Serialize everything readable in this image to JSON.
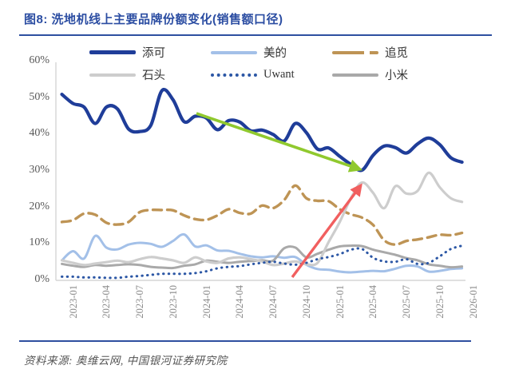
{
  "header": {
    "title": "图8: 洗地机线上主要品牌份额变化(销售额口径)"
  },
  "source": {
    "text": "资料来源: 奥维云网, 中国银河证券研究院"
  },
  "colors": {
    "title_blue": "#2b4da2",
    "rule_blue": "#2e4fa0",
    "axis_gray": "#d6d6d6",
    "green_arrow": "#90c92e",
    "red_arrow": "#f15f5f"
  },
  "chart_data": {
    "type": "line",
    "title": "洗地机线上主要品牌份额变化(销售额口径)",
    "x_start": "2023-01",
    "x_interval": "monthly",
    "x_tick_labels": [
      "2023-01",
      "2023-04",
      "2023-07",
      "2023-10",
      "2024-01",
      "2024-04",
      "2024-07",
      "2024-10",
      "2025-01",
      "2025-04",
      "2025-07",
      "2025-10",
      "2026-01"
    ],
    "y_tick_labels": [
      "0%",
      "10%",
      "20%",
      "30%",
      "40%",
      "50%",
      "60%"
    ],
    "y_tick_values": [
      0,
      10,
      20,
      30,
      40,
      50,
      60
    ],
    "ylim": [
      0,
      60
    ],
    "grid": false,
    "legend_position": "top",
    "series": [
      {
        "name": "添可",
        "color": "#1f3d99",
        "style": "solid",
        "width": 4.2,
        "values": [
          51,
          48.5,
          47.5,
          43,
          47.5,
          47,
          41.5,
          40.8,
          42.5,
          52,
          49.5,
          43.5,
          45,
          44.5,
          41.3,
          43.8,
          43.4,
          41,
          41.2,
          40,
          38.2,
          43,
          40.5,
          36,
          36.3,
          34,
          31.8,
          30.2,
          34.3,
          36.8,
          36.4,
          34.9,
          37.4,
          39,
          37.2,
          33.6,
          32.4
        ]
      },
      {
        "name": "美的",
        "color": "#a3c0e8",
        "style": "solid",
        "width": 3,
        "values": [
          5.5,
          8,
          6,
          12.2,
          9,
          8.5,
          9.8,
          10.3,
          10,
          9.2,
          10.8,
          12.6,
          9.3,
          9.6,
          8.2,
          8.1,
          7.3,
          6.6,
          6.3,
          6.6,
          6.2,
          6.4,
          4.3,
          3.1,
          2.9,
          2.4,
          2.2,
          2.4,
          2.6,
          2.5,
          3.2,
          4,
          3.8,
          2.4,
          2.6,
          3.1,
          3.3
        ]
      },
      {
        "name": "追觅",
        "color": "#be9455",
        "style": "dashed",
        "width": 3.4,
        "values": [
          16,
          16.5,
          18.3,
          18,
          15.8,
          15.3,
          16,
          18.7,
          19.3,
          19.3,
          19.2,
          17.8,
          16.8,
          16.6,
          17.8,
          19.5,
          18.5,
          18.3,
          20.5,
          19.8,
          22,
          26,
          22.5,
          21.8,
          21.7,
          19.5,
          18.1,
          17.2,
          15.2,
          11,
          9.8,
          10.8,
          11.2,
          11.8,
          12.5,
          12.4,
          13
        ]
      },
      {
        "name": "石头",
        "color": "#cdcdcd",
        "style": "solid",
        "width": 3.2,
        "values": [
          5.5,
          4.8,
          4.2,
          4.6,
          5,
          5.4,
          5,
          5.8,
          6.4,
          6,
          5.5,
          4.8,
          6.3,
          5.2,
          4.8,
          6,
          6.3,
          5.8,
          5.2,
          4.2,
          4.6,
          5.2,
          4.4,
          4.8,
          10.5,
          16,
          22.5,
          26.8,
          24,
          19.8,
          25.8,
          23.8,
          24.5,
          29.5,
          25.5,
          22.5,
          21.5
        ]
      },
      {
        "name": "Uwant",
        "color": "#2c57a5",
        "style": "dotted",
        "width": 3,
        "values": [
          1,
          1,
          0.8,
          0.8,
          0.7,
          0.7,
          1,
          1.2,
          1.5,
          1.8,
          1.8,
          1.8,
          2,
          2.5,
          3.3,
          3.7,
          3.9,
          4.4,
          4.8,
          5.1,
          4.6,
          4.3,
          4.8,
          5.8,
          6.4,
          7.2,
          8.4,
          8.6,
          6.2,
          5.2,
          5.1,
          5.8,
          4.5,
          4.8,
          6.6,
          8.6,
          9.5
        ]
      },
      {
        "name": "小米",
        "color": "#a9a9a9",
        "style": "solid",
        "width": 3,
        "values": [
          4.5,
          4,
          3.7,
          4.2,
          4,
          4.2,
          4.4,
          4.2,
          3.7,
          3.5,
          3.4,
          4,
          4.4,
          5.4,
          5.1,
          4.8,
          5.1,
          5.3,
          5.5,
          5.4,
          8.8,
          9,
          6.3,
          7.3,
          8.4,
          9.3,
          9.5,
          9.4,
          8.4,
          7.7,
          7,
          6.1,
          5.5,
          4.4,
          4,
          3.6,
          3.8
        ]
      }
    ],
    "annotations": {
      "arrows": [
        {
          "id": "downtrend-arrow",
          "from": [
            246,
            142
          ],
          "to": [
            451,
            212
          ],
          "color": "#90c92e",
          "width": 3.6
        },
        {
          "id": "uptrend-arrow",
          "from": [
            366,
            347
          ],
          "to": [
            452,
            232
          ],
          "color": "#f15f5f",
          "width": 3.4
        }
      ]
    }
  }
}
